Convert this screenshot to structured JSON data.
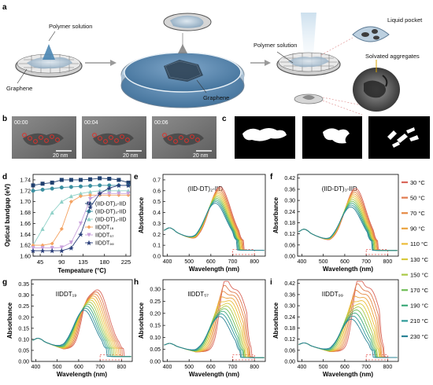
{
  "panels": {
    "a": {
      "letter": "a",
      "labels": {
        "polymer_solution_1": "Polymer solution",
        "graphene_1": "Graphene",
        "graphene_2": "Graphene",
        "polymer_solution_2": "Polymer solution",
        "liquid_pocket": "Liquid pocket",
        "solvated_aggregates": "Solvated aggregates"
      }
    },
    "b": {
      "letter": "b",
      "frames": [
        {
          "time": "00:00",
          "scale": "20 nm"
        },
        {
          "time": "00:04",
          "scale": "20 nm"
        },
        {
          "time": "00:06",
          "scale": "20 nm"
        }
      ]
    },
    "c": {
      "letter": "c"
    },
    "d": {
      "letter": "d"
    },
    "e": {
      "letter": "e",
      "title": "(IID-DT)₂-IID"
    },
    "f": {
      "letter": "f",
      "title": "(IID-DT)₃-IID"
    },
    "g": {
      "letter": "g",
      "title": "IIDDT₁₉"
    },
    "h": {
      "letter": "h",
      "title": "IIDDT₅₇"
    },
    "i": {
      "letter": "i",
      "title": "IIDDT₉₉"
    }
  },
  "colors": {
    "temps": [
      "#d9665a",
      "#e07a4e",
      "#e68a45",
      "#eba33e",
      "#ecbc38",
      "#d8c93c",
      "#a9c844",
      "#6fbe57",
      "#3daa7a",
      "#2d9a98",
      "#2a8396"
    ],
    "series_d": [
      "#1f3f6e",
      "#3a8fa0",
      "#8fd1c8",
      "#f4a261",
      "#c9a0dc",
      "#2a3f7a"
    ]
  },
  "temperature_legend": [
    "30 °C",
    "50 °C",
    "70 °C",
    "90 °C",
    "110 °C",
    "130 °C",
    "150 °C",
    "170 °C",
    "190 °C",
    "210 °C",
    "230 °C"
  ],
  "chart_data": [
    {
      "id": "d",
      "type": "scatter",
      "xlabel": "Tempeature (°C)",
      "ylabel": "Optical bandgap (eV)",
      "xlim": [
        30,
        235
      ],
      "ylim": [
        1.6,
        1.75
      ],
      "xticks": [
        45,
        90,
        135,
        180,
        225
      ],
      "yticks": [
        1.6,
        1.62,
        1.64,
        1.66,
        1.68,
        1.7,
        1.72,
        1.74
      ],
      "x": [
        30,
        50,
        70,
        90,
        110,
        130,
        150,
        170,
        190,
        210,
        230
      ],
      "legend_position": "center-right",
      "series": [
        {
          "name": "(IID-DT)₂-IID",
          "marker": "square",
          "values": [
            1.73,
            1.733,
            1.735,
            1.74,
            1.74,
            1.74,
            1.741,
            1.743,
            1.742,
            1.74,
            1.735
          ]
        },
        {
          "name": "(IID-DT)₃-IID",
          "marker": "circle",
          "values": [
            1.72,
            1.722,
            1.724,
            1.726,
            1.727,
            1.728,
            1.729,
            1.73,
            1.73,
            1.73,
            1.73
          ]
        },
        {
          "name": "(IID-DT)₄-IID",
          "marker": "triangle",
          "values": [
            1.62,
            1.65,
            1.68,
            1.7,
            1.71,
            1.715,
            1.718,
            1.72,
            1.72,
            1.72,
            1.72
          ]
        },
        {
          "name": "IIDDT₁₉",
          "marker": "diamond",
          "values": [
            1.62,
            1.62,
            1.623,
            1.65,
            1.7,
            1.71,
            1.712,
            1.712,
            1.712,
            1.712,
            1.712
          ]
        },
        {
          "name": "IIDDT₅₇",
          "marker": "triangle-down",
          "values": [
            1.615,
            1.615,
            1.615,
            1.616,
            1.625,
            1.66,
            1.705,
            1.715,
            1.715,
            1.715,
            1.715
          ]
        },
        {
          "name": "IIDDT₉₉",
          "marker": "star",
          "values": [
            1.61,
            1.61,
            1.61,
            1.61,
            1.615,
            1.64,
            1.69,
            1.715,
            1.725,
            1.73,
            1.73
          ]
        }
      ]
    },
    {
      "id": "e",
      "type": "line",
      "xlabel": "Wavelength (nm)",
      "ylabel": "Absorbance",
      "xlim": [
        380,
        850
      ],
      "ylim": [
        0,
        0.75
      ],
      "xticks": [
        400,
        500,
        600,
        700,
        800
      ],
      "yticks": [
        0.0,
        0.1,
        0.2,
        0.3,
        0.4,
        0.5,
        0.6,
        0.7
      ],
      "base": 0.26,
      "peak_start": 0.68,
      "peak_end": 0.53,
      "pos_start": 642,
      "pos_end": 620,
      "shoulder": 0.0,
      "cutoff_start": 730,
      "cutoff_end": 700
    },
    {
      "id": "f",
      "type": "line",
      "xlabel": "Wavelength (nm)",
      "ylabel": "Absorbance",
      "xlim": [
        380,
        850
      ],
      "ylim": [
        0,
        0.44
      ],
      "xticks": [
        400,
        500,
        600,
        700,
        800
      ],
      "yticks": [
        0.0,
        0.06,
        0.12,
        0.18,
        0.24,
        0.3,
        0.36,
        0.42
      ],
      "base": 0.145,
      "peak_start": 0.39,
      "peak_end": 0.29,
      "pos_start": 650,
      "pos_end": 628,
      "shoulder": 0.0,
      "cutoff_start": 735,
      "cutoff_end": 705
    },
    {
      "id": "g",
      "type": "line",
      "xlabel": "Wavelength (nm)",
      "ylabel": "Absorbance",
      "xlim": [
        380,
        850
      ],
      "ylim": [
        0,
        0.37
      ],
      "xticks": [
        400,
        500,
        600,
        700,
        800
      ],
      "yticks": [
        0.0,
        0.05,
        0.1,
        0.15,
        0.2,
        0.25,
        0.3,
        0.35
      ],
      "base": 0.105,
      "peak_start": 0.34,
      "peak_end": 0.25,
      "pos_start": 690,
      "pos_end": 625,
      "shoulder": 0.25,
      "cutoff_start": 790,
      "cutoff_end": 710
    },
    {
      "id": "h",
      "type": "line",
      "xlabel": "Wavelength (nm)",
      "ylabel": "Absorbance",
      "xlim": [
        380,
        850
      ],
      "ylim": [
        0,
        0.34
      ],
      "xticks": [
        400,
        500,
        600,
        700,
        800
      ],
      "yticks": [
        0.0,
        0.05,
        0.1,
        0.15,
        0.2,
        0.25,
        0.3
      ],
      "base": 0.075,
      "peak_start": 0.305,
      "peak_end": 0.2,
      "pos_start": 720,
      "pos_end": 640,
      "shoulder": 0.6,
      "cutoff_start": 765,
      "cutoff_end": 715
    },
    {
      "id": "i",
      "type": "line",
      "xlabel": "Wavelength (nm)",
      "ylabel": "Absorbance",
      "xlim": [
        380,
        850
      ],
      "ylim": [
        0,
        0.44
      ],
      "xticks": [
        400,
        500,
        600,
        700,
        800
      ],
      "yticks": [
        0.0,
        0.06,
        0.12,
        0.18,
        0.24,
        0.3,
        0.36,
        0.42
      ],
      "base": 0.1,
      "peak_start": 0.405,
      "peak_end": 0.245,
      "pos_start": 718,
      "pos_end": 630,
      "shoulder": 0.6,
      "cutoff_start": 762,
      "cutoff_end": 712
    }
  ]
}
